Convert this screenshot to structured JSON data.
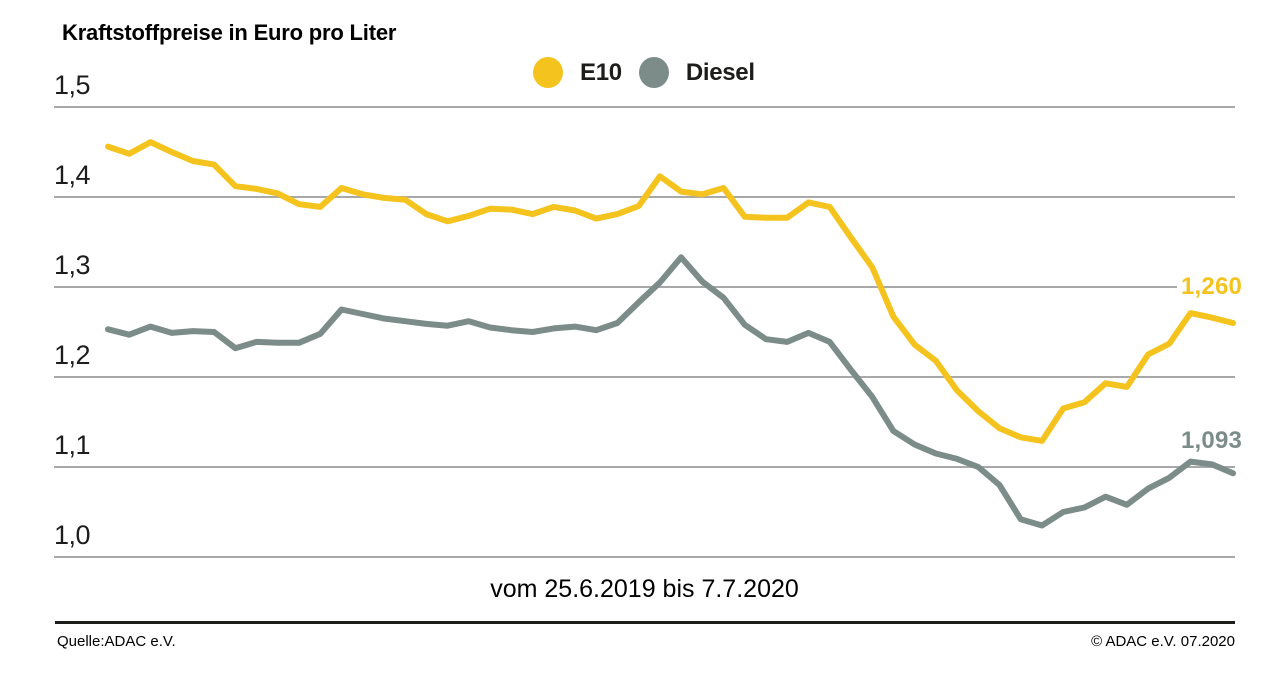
{
  "page": {
    "title": "Kraftstoffpreise in Euro pro Liter",
    "period_label": "vom 25.6.2019 bis 7.7.2020",
    "footer": {
      "source": "Quelle:ADAC e.V.",
      "copyright": "© ADAC e.V. 07.2020"
    }
  },
  "colors": {
    "e10": "#F5C31D",
    "diesel": "#7C8C89",
    "grid": "#A8A8A8",
    "footer_rule": "#1D1D1B",
    "background": "#FFFFFF",
    "text": "#1D1D1B"
  },
  "chart_data": {
    "type": "line",
    "title": "Kraftstoffpreise in Euro pro Liter",
    "unit": "Euro pro Liter",
    "period": "vom 25.6.2019 bis 7.7.2020",
    "x_start": "25.6.2019",
    "x_end": "7.7.2020",
    "x_cadence": "weekly",
    "ylim": [
      1.0,
      1.5
    ],
    "grid": "horizontal",
    "grid_color": "#A8A8A8",
    "legend_position": "top-center",
    "yticks": [
      {
        "label": "1,5",
        "value": 1.5
      },
      {
        "label": "1,4",
        "value": 1.4
      },
      {
        "label": "1,3",
        "value": 1.3
      },
      {
        "label": "1,2",
        "value": 1.2
      },
      {
        "label": "1,1",
        "value": 1.1
      },
      {
        "label": "1,0",
        "value": 1.0
      }
    ],
    "series": [
      {
        "name": "E10",
        "color": "#F5C31D",
        "last_value_label": "1,260",
        "last_value": 1.26,
        "values": [
          1.456,
          1.448,
          1.461,
          1.45,
          1.44,
          1.436,
          1.412,
          1.409,
          1.404,
          1.392,
          1.389,
          1.41,
          1.403,
          1.399,
          1.397,
          1.381,
          1.373,
          1.379,
          1.387,
          1.386,
          1.381,
          1.389,
          1.385,
          1.376,
          1.381,
          1.39,
          1.423,
          1.406,
          1.403,
          1.41,
          1.378,
          1.377,
          1.377,
          1.394,
          1.389,
          1.355,
          1.322,
          1.267,
          1.236,
          1.218,
          1.185,
          1.162,
          1.143,
          1.133,
          1.129,
          1.165,
          1.172,
          1.193,
          1.189,
          1.225,
          1.237,
          1.271,
          1.266,
          1.26
        ]
      },
      {
        "name": "Diesel",
        "color": "#7C8C89",
        "last_value_label": "1,093",
        "last_value": 1.093,
        "values": [
          1.253,
          1.247,
          1.256,
          1.249,
          1.251,
          1.25,
          1.232,
          1.239,
          1.238,
          1.238,
          1.248,
          1.275,
          1.27,
          1.265,
          1.262,
          1.259,
          1.257,
          1.262,
          1.255,
          1.252,
          1.25,
          1.254,
          1.256,
          1.252,
          1.26,
          1.283,
          1.305,
          1.333,
          1.306,
          1.288,
          1.258,
          1.242,
          1.239,
          1.249,
          1.239,
          1.208,
          1.178,
          1.14,
          1.125,
          1.115,
          1.109,
          1.1,
          1.08,
          1.042,
          1.035,
          1.05,
          1.055,
          1.067,
          1.058,
          1.076,
          1.088,
          1.106,
          1.103,
          1.093
        ]
      }
    ]
  }
}
